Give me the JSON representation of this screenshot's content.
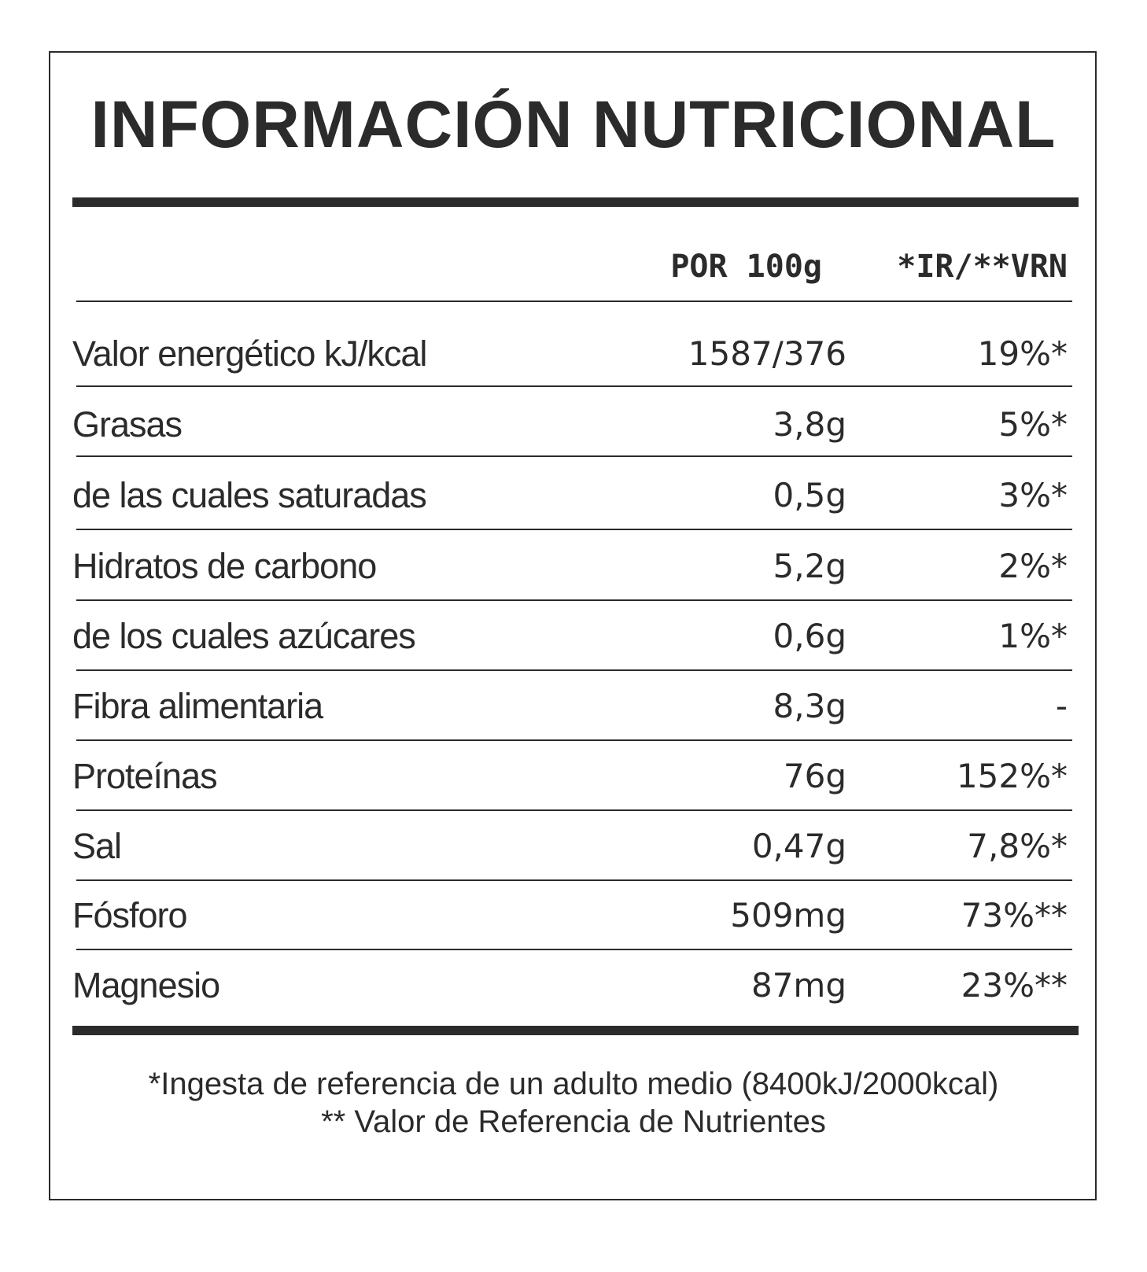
{
  "title": "INFORMACIÓN NUTRICIONAL",
  "columns": {
    "per_100g": "POR 100g",
    "ir_vrn": "*IR/**VRN"
  },
  "rows": [
    {
      "name": "Valor energético kJ/kcal",
      "amount": "1587/376",
      "ir": "19%*"
    },
    {
      "name": "Grasas",
      "amount": "3,8g",
      "ir": "5%*"
    },
    {
      "name": "de las cuales saturadas",
      "amount": "0,5g",
      "ir": "3%*"
    },
    {
      "name": "Hidratos de carbono",
      "amount": "5,2g",
      "ir": "2%*"
    },
    {
      "name": "de los cuales azúcares",
      "amount": "0,6g",
      "ir": "1%*"
    },
    {
      "name": "Fibra alimentaria",
      "amount": "8,3g",
      "ir": "-"
    },
    {
      "name": "Proteínas",
      "amount": "76g",
      "ir": "152%*"
    },
    {
      "name": "Sal",
      "amount": "0,47g",
      "ir": "7,8%*"
    },
    {
      "name": "Fósforo",
      "amount": "509mg",
      "ir": "73%**"
    },
    {
      "name": "Magnesio",
      "amount": "87mg",
      "ir": "23%**"
    }
  ],
  "footnotes": {
    "ir": "*Ingesta de referencia de un adulto medio (8400kJ/2000kcal)",
    "vrn": "** Valor de Referencia de Nutrientes"
  }
}
